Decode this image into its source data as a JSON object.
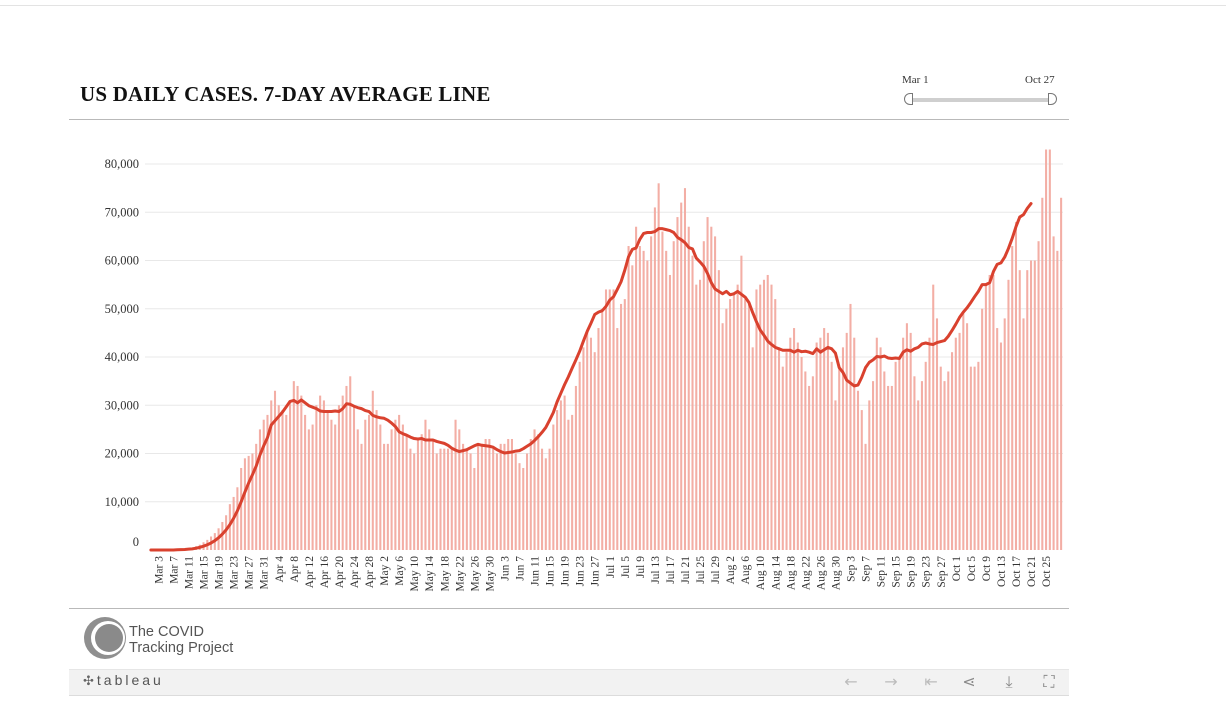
{
  "title": "US DAILY CASES. 7-DAY AVERAGE LINE",
  "date_slider": {
    "start_label": "Mar 1",
    "end_label": "Oct 27",
    "start_fraction": 0.0,
    "end_fraction": 1.0
  },
  "colors": {
    "bar": "#f3aea5",
    "line": "#d9412e",
    "grid": "#e8e8e8",
    "axis_text": "#333333"
  },
  "logo": {
    "line1": "The COVID",
    "line2": "Tracking Project",
    "icon": "covid-tracking-logo-icon"
  },
  "toolbar": {
    "brand": "tableau",
    "brand_icon": "tableau-plus-icon",
    "buttons": [
      {
        "name": "undo-button",
        "icon": "arrow-left-icon",
        "glyph": "←",
        "enabled": false
      },
      {
        "name": "redo-button",
        "icon": "arrow-right-icon",
        "glyph": "→",
        "enabled": false
      },
      {
        "name": "revert-button",
        "icon": "revert-to-start-icon",
        "glyph": "⇤",
        "enabled": false
      },
      {
        "name": "share-button",
        "icon": "share-icon",
        "glyph": "⋖",
        "enabled": true
      },
      {
        "name": "download-button",
        "icon": "download-icon",
        "glyph": "⤓",
        "enabled": true
      },
      {
        "name": "fullscreen-button",
        "icon": "fullscreen-icon",
        "glyph": "⛶",
        "enabled": true
      }
    ]
  },
  "chart_data": {
    "type": "bar",
    "title": "US DAILY CASES. 7-DAY AVERAGE LINE",
    "xlabel": "",
    "ylabel": "",
    "ylim": [
      0,
      80000
    ],
    "yticks": [
      0,
      10000,
      20000,
      30000,
      40000,
      50000,
      60000,
      70000,
      80000
    ],
    "ytick_labels": [
      "0",
      "10,000",
      "20,000",
      "30,000",
      "40,000",
      "50,000",
      "60,000",
      "70,000",
      "80,000"
    ],
    "x_start": "2020-03-01",
    "x_end": "2020-10-27",
    "x_tick_labels": [
      "Mar 3",
      "Mar 7",
      "Mar 11",
      "Mar 15",
      "Mar 19",
      "Mar 23",
      "Mar 27",
      "Mar 31",
      "Apr 4",
      "Apr 8",
      "Apr 12",
      "Apr 16",
      "Apr 20",
      "Apr 24",
      "Apr 28",
      "May 2",
      "May 6",
      "May 10",
      "May 14",
      "May 18",
      "May 22",
      "May 26",
      "May 30",
      "Jun 3",
      "Jun 7",
      "Jun 11",
      "Jun 15",
      "Jun 19",
      "Jun 23",
      "Jun 27",
      "Jul 1",
      "Jul 5",
      "Jul 9",
      "Jul 13",
      "Jul 17",
      "Jul 21",
      "Jul 25",
      "Jul 29",
      "Aug 2",
      "Aug 6",
      "Aug 10",
      "Aug 14",
      "Aug 18",
      "Aug 22",
      "Aug 26",
      "Aug 30",
      "Sep 3",
      "Sep 7",
      "Sep 11",
      "Sep 15",
      "Sep 19",
      "Sep 23",
      "Sep 27",
      "Oct 1",
      "Oct 5",
      "Oct 9",
      "Oct 13",
      "Oct 17",
      "Oct 21",
      "Oct 25"
    ],
    "grid": true,
    "legend": "none",
    "series": [
      {
        "type": "bar",
        "values": [
          0,
          0,
          0,
          0,
          0,
          0,
          0,
          100,
          100,
          200,
          300,
          400,
          800,
          1100,
          1600,
          2100,
          2800,
          3500,
          4500,
          5800,
          7200,
          9500,
          11000,
          13000,
          17000,
          19000,
          19500,
          20000,
          22000,
          25000,
          27000,
          28000,
          31000,
          33000,
          30000,
          29000,
          28000,
          31000,
          35000,
          34000,
          32000,
          28000,
          25000,
          26000,
          30000,
          32000,
          31000,
          29000,
          27000,
          26000,
          30000,
          32000,
          34000,
          36000,
          30000,
          25000,
          22000,
          27000,
          28000,
          33000,
          29000,
          26000,
          22000,
          22000,
          25000,
          27000,
          28000,
          26000,
          24000,
          21000,
          20000,
          23000,
          24000,
          27000,
          25000,
          23000,
          20000,
          21000,
          21000,
          21000,
          21000,
          27000,
          25000,
          22000,
          21000,
          20000,
          17000,
          22000,
          22000,
          23000,
          23000,
          21000,
          20000,
          22000,
          22000,
          23000,
          23000,
          20000,
          18000,
          17000,
          20000,
          23000,
          25000,
          24000,
          21000,
          19000,
          21000,
          26000,
          29000,
          31000,
          32000,
          27000,
          28000,
          34000,
          39000,
          42000,
          45000,
          44000,
          41000,
          46000,
          50000,
          54000,
          54000,
          54000,
          46000,
          51000,
          52000,
          63000,
          59000,
          67000,
          63000,
          62000,
          60000,
          65000,
          71000,
          76000,
          66000,
          62000,
          57000,
          64000,
          69000,
          72000,
          75000,
          67000,
          61000,
          55000,
          56000,
          64000,
          69000,
          67000,
          65000,
          58000,
          47000,
          50000,
          52000,
          53000,
          55000,
          61000,
          52000,
          51000,
          42000,
          54000,
          55000,
          56000,
          57000,
          55000,
          52000,
          42000,
          38000,
          41000,
          44000,
          46000,
          43000,
          40000,
          37000,
          34000,
          36000,
          43000,
          44000,
          46000,
          45000,
          39000,
          31000,
          38000,
          42000,
          45000,
          51000,
          44000,
          33000,
          29000,
          22000,
          31000,
          35000,
          44000,
          42000,
          37000,
          34000,
          34000,
          39000,
          40000,
          44000,
          47000,
          45000,
          36000,
          31000,
          35000,
          39000,
          44000,
          55000,
          48000,
          38000,
          35000,
          37000,
          41000,
          44000,
          45000,
          49000,
          47000,
          38000,
          38000,
          39000,
          50000,
          55000,
          57000,
          57000,
          46000,
          43000,
          48000,
          56000,
          63000,
          68000,
          58000,
          48000,
          58000,
          60000,
          60000,
          64000,
          73000,
          83000,
          83000,
          65000,
          62000,
          73000
        ]
      },
      {
        "type": "line",
        "name": "7-day average",
        "values": [
          0,
          0,
          0,
          0,
          0,
          0,
          0,
          40,
          70,
          110,
          170,
          240,
          380,
          550,
          790,
          1090,
          1460,
          1930,
          2540,
          3290,
          4180,
          5260,
          6580,
          8120,
          9990,
          12000,
          13900,
          15600,
          17400,
          19700,
          21600,
          23300,
          25900,
          26800,
          27700,
          28600,
          29700,
          30800,
          31000,
          30500,
          31100,
          30500,
          29900,
          29600,
          29300,
          28800,
          28700,
          28700,
          28700,
          28800,
          28700,
          29300,
          30300,
          30200,
          29800,
          29500,
          29300,
          28900,
          28700,
          27900,
          27600,
          27400,
          27300,
          26900,
          26300,
          25600,
          24500,
          24100,
          23800,
          23400,
          23100,
          23000,
          23100,
          22800,
          22800,
          22800,
          22500,
          22300,
          22100,
          21700,
          21100,
          20700,
          20400,
          20600,
          20800,
          21200,
          21600,
          21900,
          21700,
          21600,
          21500,
          21300,
          20800,
          20400,
          20100,
          20200,
          20300,
          20500,
          20600,
          21000,
          21500,
          22000,
          22700,
          23500,
          24400,
          25400,
          26900,
          28500,
          30700,
          32500,
          34300,
          35900,
          37700,
          39400,
          41200,
          43300,
          45300,
          47000,
          48800,
          49300,
          49600,
          50500,
          51800,
          52500,
          54000,
          55600,
          58000,
          60800,
          62300,
          62600,
          64400,
          65600,
          65800,
          65800,
          66000,
          66600,
          66600,
          66400,
          66200,
          65800,
          64800,
          64300,
          63700,
          62700,
          62400,
          60500,
          59700,
          58800,
          57300,
          55400,
          54100,
          53600,
          53100,
          53600,
          52900,
          53100,
          53600,
          53000,
          52400,
          51300,
          49200,
          47300,
          45600,
          44500,
          43300,
          42600,
          42000,
          41700,
          41400,
          41400,
          41400,
          41000,
          41400,
          41100,
          41200,
          41000,
          40700,
          41700,
          41000,
          41500,
          42000,
          41700,
          40800,
          37800,
          36800,
          35200,
          34600,
          34000,
          34200,
          35800,
          37800,
          38900,
          39400,
          40100,
          40000,
          40200,
          39800,
          39700,
          39800,
          39700,
          41000,
          41500,
          41200,
          41700,
          42000,
          42700,
          42900,
          42700,
          42600,
          43000,
          43200,
          43400,
          44300,
          45500,
          46800,
          48200,
          49300,
          50200,
          51300,
          52500,
          53600,
          55000,
          55000,
          55400,
          57700,
          59200,
          59500,
          60700,
          62500,
          64600,
          67000,
          69000,
          69500,
          70800,
          71800
        ]
      }
    ]
  }
}
